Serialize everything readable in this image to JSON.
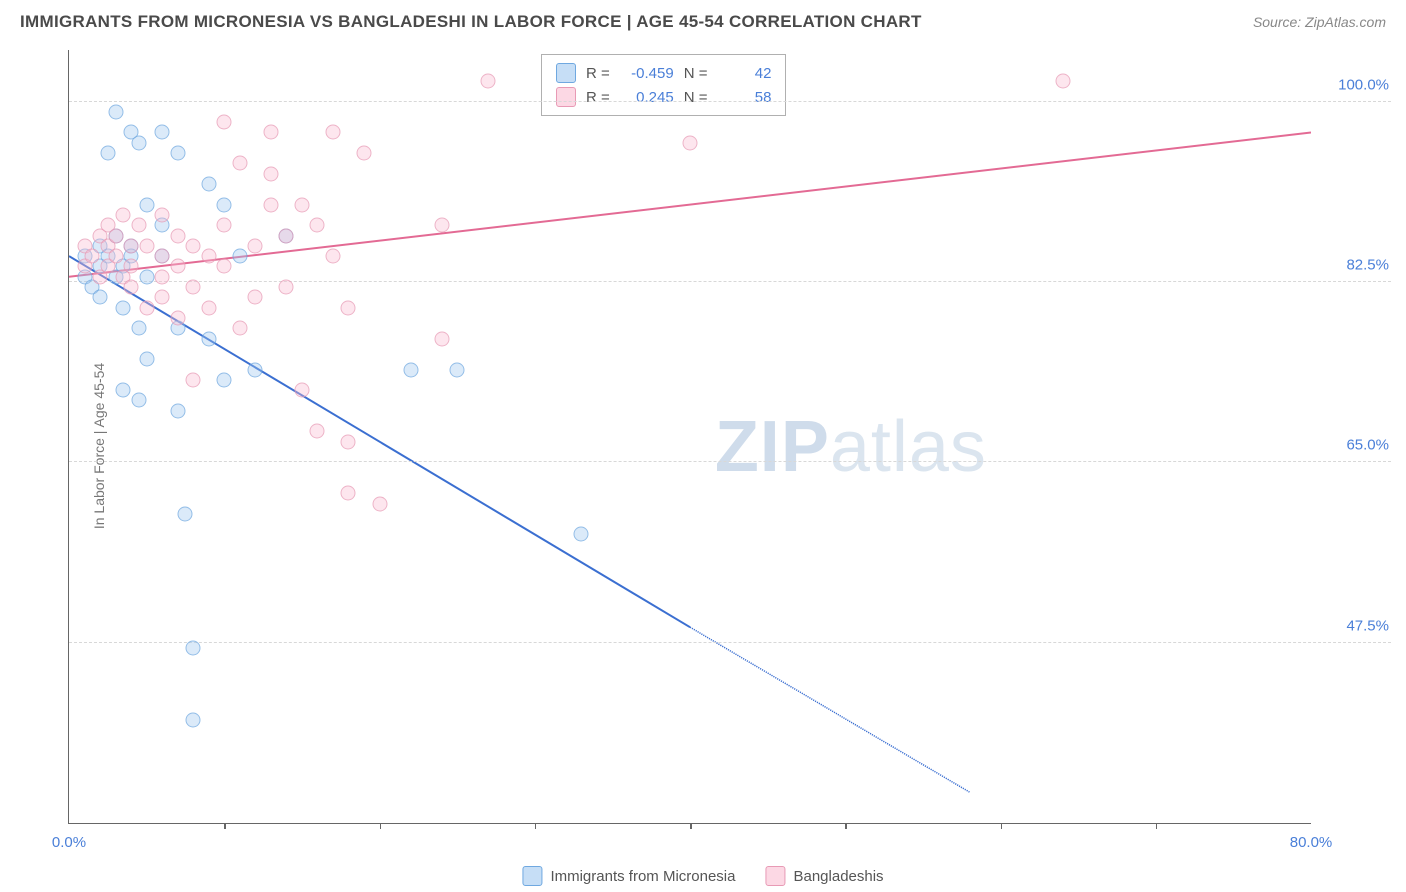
{
  "header": {
    "title": "IMMIGRANTS FROM MICRONESIA VS BANGLADESHI IN LABOR FORCE | AGE 45-54 CORRELATION CHART",
    "source_prefix": "Source: ",
    "source_name": "ZipAtlas.com"
  },
  "watermark": {
    "part1": "ZIP",
    "part2": "atlas"
  },
  "chart": {
    "type": "scatter-with-trendlines",
    "ylabel": "In Labor Force | Age 45-54",
    "xlim": [
      0,
      80
    ],
    "ylim": [
      30,
      105
    ],
    "y_ticks": [
      47.5,
      65.0,
      82.5,
      100.0
    ],
    "y_tick_labels": [
      "47.5%",
      "65.0%",
      "82.5%",
      "100.0%"
    ],
    "x_endpoints": [
      0,
      80
    ],
    "x_endpoint_labels": [
      "0.0%",
      "80.0%"
    ],
    "x_minor_ticks": [
      10,
      20,
      30,
      40,
      50,
      60,
      70
    ],
    "background_color": "#ffffff",
    "grid_color": "#d8d8d8",
    "axis_color": "#666666",
    "tick_label_color": "#4a7fd8",
    "series": [
      {
        "name": "Immigrants from Micronesia",
        "color_fill": "rgba(160,200,240,0.5)",
        "color_stroke": "#6fa8e0",
        "trend_color": "#3b6fd1",
        "R": -0.459,
        "N": 42,
        "trend_start": [
          0,
          85
        ],
        "trend_solid_end": [
          40,
          49
        ],
        "trend_dashed_end": [
          58,
          33
        ],
        "points": [
          [
            1,
            83
          ],
          [
            1,
            85
          ],
          [
            1.5,
            82
          ],
          [
            2,
            84
          ],
          [
            2,
            86
          ],
          [
            2,
            81
          ],
          [
            2.5,
            85
          ],
          [
            2.5,
            95
          ],
          [
            3,
            99
          ],
          [
            3,
            87
          ],
          [
            3,
            83
          ],
          [
            3.5,
            84
          ],
          [
            3.5,
            80
          ],
          [
            3.5,
            72
          ],
          [
            4,
            97
          ],
          [
            4,
            86
          ],
          [
            4,
            85
          ],
          [
            4.5,
            78
          ],
          [
            4.5,
            71
          ],
          [
            4.5,
            96
          ],
          [
            5,
            90
          ],
          [
            5,
            75
          ],
          [
            5,
            83
          ],
          [
            6,
            97
          ],
          [
            6,
            85
          ],
          [
            6,
            88
          ],
          [
            7,
            95
          ],
          [
            7,
            70
          ],
          [
            7,
            78
          ],
          [
            7.5,
            60
          ],
          [
            8,
            40
          ],
          [
            8,
            47
          ],
          [
            9,
            92
          ],
          [
            9,
            77
          ],
          [
            10,
            90
          ],
          [
            10,
            73
          ],
          [
            11,
            85
          ],
          [
            12,
            74
          ],
          [
            14,
            87
          ],
          [
            22,
            74
          ],
          [
            25,
            74
          ],
          [
            33,
            58
          ]
        ]
      },
      {
        "name": "Bangladeshis",
        "color_fill": "rgba(250,190,210,0.5)",
        "color_stroke": "#e89ab5",
        "trend_color": "#e36a94",
        "R": 0.245,
        "N": 58,
        "trend_start": [
          0,
          83
        ],
        "trend_solid_end": [
          80,
          97
        ],
        "trend_dashed_end": null,
        "points": [
          [
            1,
            86
          ],
          [
            1,
            84
          ],
          [
            1.5,
            85
          ],
          [
            2,
            87
          ],
          [
            2,
            83
          ],
          [
            2.5,
            86
          ],
          [
            2.5,
            88
          ],
          [
            2.5,
            84
          ],
          [
            3,
            85
          ],
          [
            3,
            87
          ],
          [
            3.5,
            83
          ],
          [
            3.5,
            89
          ],
          [
            4,
            86
          ],
          [
            4,
            84
          ],
          [
            4,
            82
          ],
          [
            4.5,
            88
          ],
          [
            5,
            86
          ],
          [
            5,
            80
          ],
          [
            6,
            89
          ],
          [
            6,
            85
          ],
          [
            6,
            83
          ],
          [
            6,
            81
          ],
          [
            7,
            87
          ],
          [
            7,
            84
          ],
          [
            7,
            79
          ],
          [
            8,
            86
          ],
          [
            8,
            82
          ],
          [
            8,
            73
          ],
          [
            9,
            85
          ],
          [
            9,
            80
          ],
          [
            10,
            88
          ],
          [
            10,
            84
          ],
          [
            10,
            98
          ],
          [
            11,
            94
          ],
          [
            11,
            78
          ],
          [
            12,
            86
          ],
          [
            12,
            81
          ],
          [
            13,
            93
          ],
          [
            13,
            90
          ],
          [
            13,
            97
          ],
          [
            14,
            87
          ],
          [
            14,
            82
          ],
          [
            15,
            90
          ],
          [
            15,
            72
          ],
          [
            16,
            88
          ],
          [
            16,
            68
          ],
          [
            17,
            97
          ],
          [
            17,
            85
          ],
          [
            18,
            67
          ],
          [
            18,
            80
          ],
          [
            18,
            62
          ],
          [
            19,
            95
          ],
          [
            20,
            61
          ],
          [
            24,
            88
          ],
          [
            24,
            77
          ],
          [
            27,
            102
          ],
          [
            40,
            96
          ],
          [
            64,
            102
          ]
        ]
      }
    ],
    "stats_label_R": "R =",
    "stats_label_N": "N ="
  }
}
